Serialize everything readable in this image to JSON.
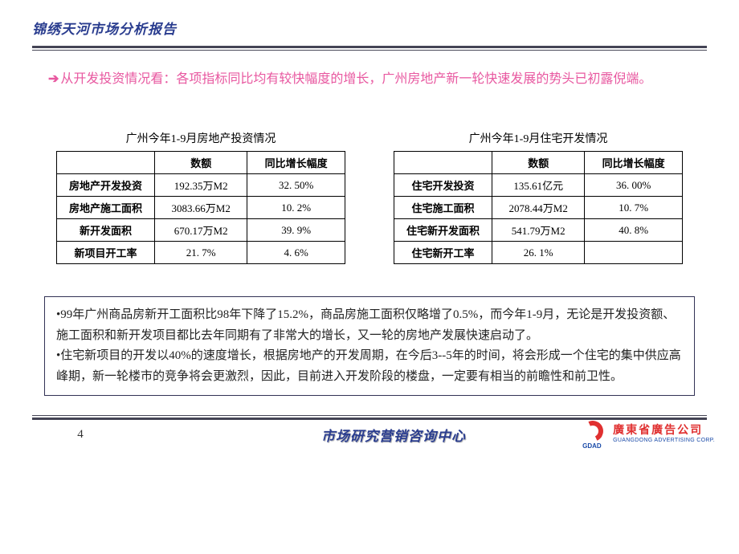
{
  "header": {
    "title": "锦绣天河市场分析报告",
    "title_color": "#2a3d8f",
    "line_color": "#444455"
  },
  "intro": {
    "arrow": "➔",
    "text": "从开发投资情况看：各项指标同比均有较快幅度的增长，广州房地产新一轮快速发展的势头已初露倪端。",
    "color": "#e858a0"
  },
  "tables": {
    "left": {
      "title": "广州今年1-9月房地产投资情况",
      "columns": [
        "",
        "数额",
        "同比增长幅度"
      ],
      "rows": [
        [
          "房地产开发投资",
          "192.35万M2",
          "32. 50%"
        ],
        [
          "房地产施工面积",
          "3083.66万M2",
          "10. 2%"
        ],
        [
          "新开发面积",
          "670.17万M2",
          "39. 9%"
        ],
        [
          "新项目开工率",
          "21. 7%",
          "4. 6%"
        ]
      ]
    },
    "right": {
      "title": "广州今年1-9月住宅开发情况",
      "columns": [
        "",
        "数额",
        "同比增长幅度"
      ],
      "rows": [
        [
          "住宅开发投资",
          "135.61亿元",
          "36. 00%"
        ],
        [
          "住宅施工面积",
          "2078.44万M2",
          "10. 7%"
        ],
        [
          "住宅新开发面积",
          "541.79万M2",
          "40. 8%"
        ],
        [
          "住宅新开工率",
          "26. 1%",
          ""
        ]
      ]
    },
    "border_color": "#000000",
    "font_size": 13
  },
  "notes": {
    "para1": "•99年广州商品房新开工面积比98年下降了15.2%，商品房施工面积仅略增了0.5%，而今年1-9月，无论是开发投资额、施工面积和新开发项目都比去年同期有了非常大的增长，又一轮的房地产发展快速启动了。",
    "para2": "•住宅新项目的开发以40%的速度增长，根据房地产的开发周期，在今后3--5年的时间，将会形成一个住宅的集中供应高峰期，新一轮楼市的竞争将会更激烈，因此，目前进入开发阶段的楼盘，一定要有相当的前瞻性和前卫性。",
    "border_color": "#333355"
  },
  "footer": {
    "page_number": "4",
    "center_text": "市场研究营销咨询中心",
    "center_color": "#2a3d8f",
    "logo_cn": "廣東省廣告公司",
    "logo_en": "GUANGDONG ADVERTISING CORP.",
    "logo_mark": "GDAD",
    "logo_red": "#e03030",
    "logo_blue": "#1a4aa8"
  }
}
